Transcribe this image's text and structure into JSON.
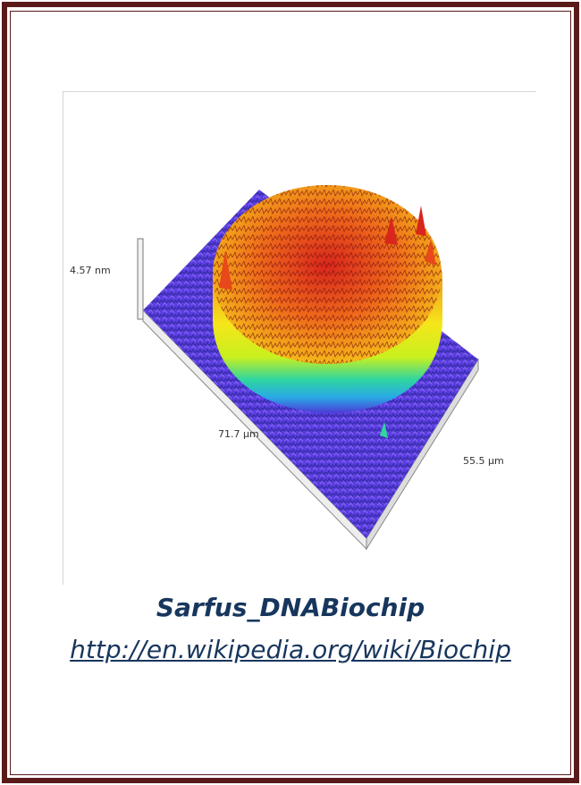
{
  "figure": {
    "axis_labels": {
      "z": "4.57 nm",
      "x": "71.7 µm",
      "y": "55.5 µm"
    },
    "colors": {
      "frame": "#5a1a1a",
      "caption": "#17365d",
      "base_low": "#4b3bd6",
      "mid": "#2fd6a0",
      "yellow": "#f5e61a",
      "top_high": "#d9261c"
    }
  },
  "caption": {
    "title": "Sarfus_DNABiochip",
    "link": "http://en.wikipedia.org/wiki/Biochip"
  }
}
